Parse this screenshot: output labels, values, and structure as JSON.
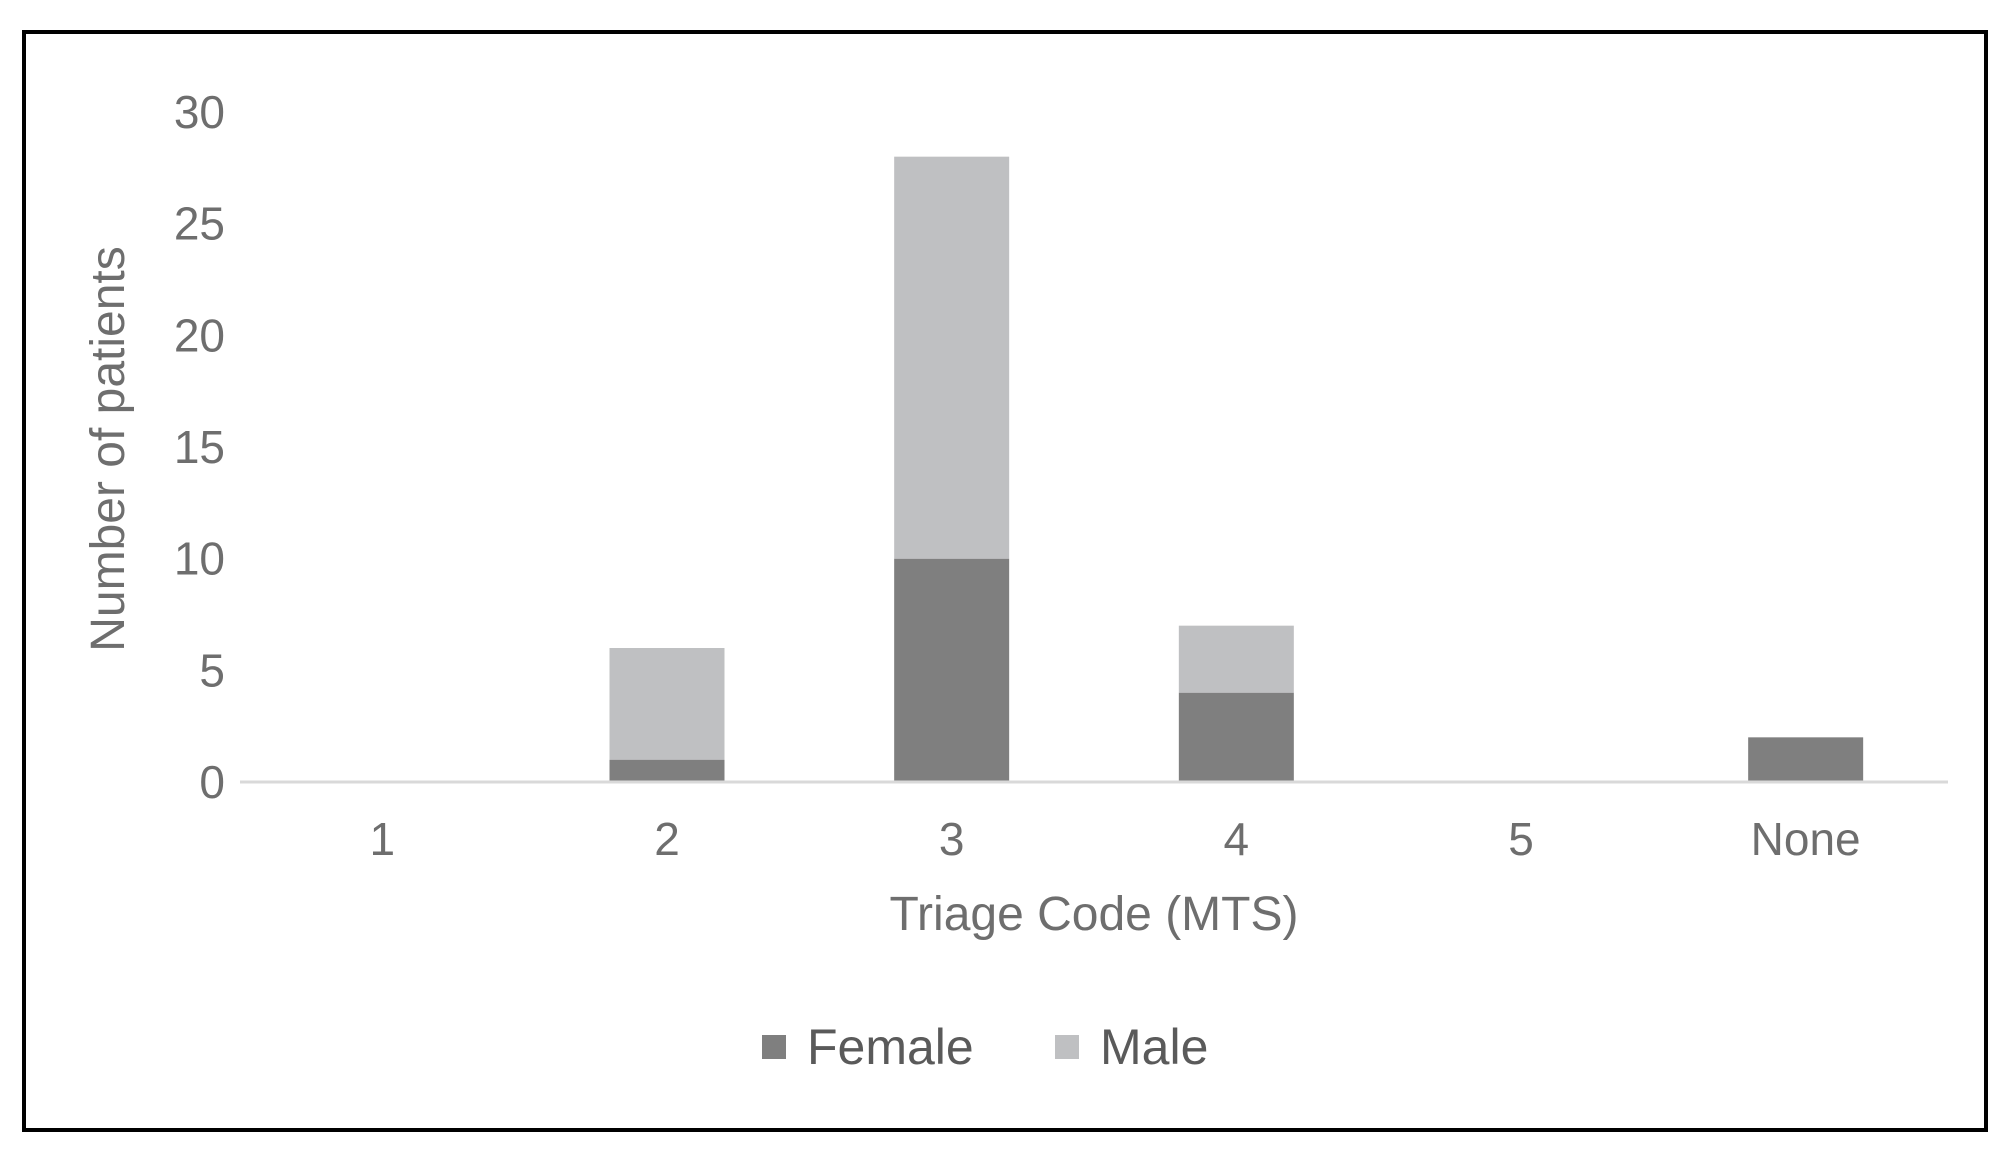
{
  "chart_data": {
    "type": "bar",
    "stacked": true,
    "categories": [
      "1",
      "2",
      "3",
      "4",
      "5",
      "None"
    ],
    "series": [
      {
        "name": "Female",
        "values": [
          0,
          1,
          10,
          4,
          0,
          2
        ],
        "color": "#7f7f7f"
      },
      {
        "name": "Male",
        "values": [
          0,
          5,
          18,
          3,
          0,
          0
        ],
        "color": "#bfc0c2"
      }
    ],
    "xlabel": "Triage Code (MTS)",
    "ylabel": "Number of patients",
    "ylim": [
      0,
      30
    ],
    "yticks": [
      "0",
      "5",
      "10",
      "15",
      "20",
      "25",
      "30"
    ],
    "grid": false,
    "legend_position": "bottom"
  }
}
